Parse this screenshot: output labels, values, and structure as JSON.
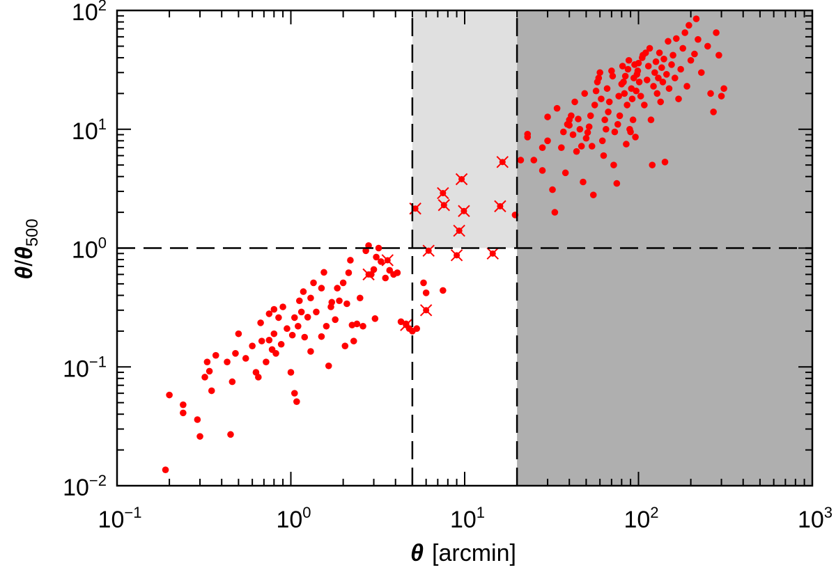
{
  "chart_data": {
    "type": "scatter",
    "title": "",
    "xscale": "log",
    "yscale": "log",
    "xlim": [
      0.1,
      1000
    ],
    "ylim": [
      0.01,
      100
    ],
    "xlabel": {
      "symbol": "θ",
      "text": "[arcmin]"
    },
    "ylabel": {
      "symbol": "θ",
      "slash": "/",
      "sub_symbol": "θ",
      "sub": "500"
    },
    "xticks": [
      {
        "value": 0.1,
        "base": "10",
        "exp": "−1"
      },
      {
        "value": 1,
        "base": "10",
        "exp": "0"
      },
      {
        "value": 10,
        "base": "10",
        "exp": "1"
      },
      {
        "value": 100,
        "base": "10",
        "exp": "2"
      },
      {
        "value": 1000,
        "base": "10",
        "exp": "3"
      }
    ],
    "yticks": [
      {
        "value": 0.01,
        "base": "10",
        "exp": "−2"
      },
      {
        "value": 0.1,
        "base": "10",
        "exp": "−1"
      },
      {
        "value": 1,
        "base": "10",
        "exp": "0"
      },
      {
        "value": 10,
        "base": "10",
        "exp": "1"
      },
      {
        "value": 100,
        "base": "10",
        "exp": "2"
      }
    ],
    "regions": [
      {
        "name": "light",
        "x_range": [
          5,
          20
        ],
        "y_range": [
          1,
          100
        ],
        "color": "#e0e0e0"
      },
      {
        "name": "dark",
        "x_range": [
          20,
          1000
        ],
        "y_range": [
          0.01,
          100
        ],
        "color": "#afafaf"
      }
    ],
    "reference_lines": [
      {
        "orientation": "vertical",
        "value": 5,
        "y_range": [
          0.01,
          100
        ]
      },
      {
        "orientation": "vertical",
        "value": 20,
        "y_range": [
          0.01,
          100
        ]
      },
      {
        "orientation": "horizontal",
        "value": 1,
        "x_range": [
          0.1,
          1000
        ]
      }
    ],
    "point_color": "#ff0000",
    "series": [
      {
        "name": "dots",
        "marker": "circle",
        "points": [
          [
            0.19,
            0.0136
          ],
          [
            0.2,
            0.058
          ],
          [
            0.24,
            0.048
          ],
          [
            0.24,
            0.041
          ],
          [
            0.29,
            0.036
          ],
          [
            0.3,
            0.026
          ],
          [
            0.32,
            0.082
          ],
          [
            0.33,
            0.11
          ],
          [
            0.34,
            0.092
          ],
          [
            0.35,
            0.063
          ],
          [
            0.37,
            0.125
          ],
          [
            0.43,
            0.11
          ],
          [
            0.45,
            0.027
          ],
          [
            0.46,
            0.075
          ],
          [
            0.48,
            0.13
          ],
          [
            0.5,
            0.19
          ],
          [
            0.55,
            0.118
          ],
          [
            0.6,
            0.15
          ],
          [
            0.63,
            0.09
          ],
          [
            0.65,
            0.082
          ],
          [
            0.67,
            0.235
          ],
          [
            0.68,
            0.165
          ],
          [
            0.72,
            0.11
          ],
          [
            0.75,
            0.168
          ],
          [
            0.75,
            0.28
          ],
          [
            0.78,
            0.14
          ],
          [
            0.8,
            0.305
          ],
          [
            0.8,
            0.19
          ],
          [
            0.82,
            0.13
          ],
          [
            0.85,
            0.26
          ],
          [
            0.88,
            0.155
          ],
          [
            0.9,
            0.32
          ],
          [
            0.95,
            0.21
          ],
          [
            1.0,
            0.09
          ],
          [
            1.02,
            0.185
          ],
          [
            1.05,
            0.26
          ],
          [
            1.05,
            0.06
          ],
          [
            1.08,
            0.051
          ],
          [
            1.1,
            0.22
          ],
          [
            1.12,
            0.36
          ],
          [
            1.15,
            0.29
          ],
          [
            1.18,
            0.43
          ],
          [
            1.2,
            0.178
          ],
          [
            1.25,
            0.262
          ],
          [
            1.3,
            0.38
          ],
          [
            1.3,
            0.135
          ],
          [
            1.35,
            0.51
          ],
          [
            1.4,
            0.29
          ],
          [
            1.5,
            0.46
          ],
          [
            1.5,
            0.18
          ],
          [
            1.55,
            0.625
          ],
          [
            1.6,
            0.22
          ],
          [
            1.65,
            0.102
          ],
          [
            1.7,
            0.32
          ],
          [
            1.72,
            0.35
          ],
          [
            1.8,
            0.25
          ],
          [
            1.85,
            0.46
          ],
          [
            1.9,
            0.36
          ],
          [
            2.0,
            0.51
          ],
          [
            2.05,
            0.15
          ],
          [
            2.1,
            0.34
          ],
          [
            2.15,
            0.62
          ],
          [
            2.2,
            0.79
          ],
          [
            2.25,
            0.225
          ],
          [
            2.3,
            0.165
          ],
          [
            2.4,
            0.23
          ],
          [
            2.5,
            0.38
          ],
          [
            2.6,
            0.22
          ],
          [
            2.7,
            0.95
          ],
          [
            2.8,
            1.05
          ],
          [
            2.9,
            0.6
          ],
          [
            3.0,
            0.66
          ],
          [
            3.05,
            0.255
          ],
          [
            3.1,
            0.84
          ],
          [
            3.2,
            1.0
          ],
          [
            3.3,
            0.77
          ],
          [
            3.5,
            0.56
          ],
          [
            3.7,
            0.65
          ],
          [
            3.9,
            0.6
          ],
          [
            4.1,
            0.62
          ],
          [
            4.3,
            0.24
          ],
          [
            4.6,
            0.23
          ],
          [
            4.8,
            0.21
          ],
          [
            5.0,
            0.2
          ],
          [
            5.3,
            0.21
          ],
          [
            5.8,
            0.51
          ],
          [
            6.0,
            0.42
          ],
          [
            7.5,
            0.44
          ],
          [
            19.5,
            1.9
          ],
          [
            21,
            5.5
          ],
          [
            23,
            8.6
          ],
          [
            23,
            9.1
          ],
          [
            25,
            5.5
          ],
          [
            28,
            7
          ],
          [
            28,
            4.5
          ],
          [
            30,
            12.7
          ],
          [
            30,
            8
          ],
          [
            32,
            3.1
          ],
          [
            33,
            2
          ],
          [
            34,
            15
          ],
          [
            36,
            7
          ],
          [
            37,
            9.5
          ],
          [
            38,
            4.3
          ],
          [
            39,
            11
          ],
          [
            40,
            10.8
          ],
          [
            40,
            12
          ],
          [
            41,
            13
          ],
          [
            42,
            9
          ],
          [
            43,
            17
          ],
          [
            44,
            6.5
          ],
          [
            45,
            12.2
          ],
          [
            46,
            10
          ],
          [
            47,
            7.2
          ],
          [
            48,
            3.6
          ],
          [
            49,
            20
          ],
          [
            50,
            8.4
          ],
          [
            51,
            9.4
          ],
          [
            52,
            10.5
          ],
          [
            53,
            13
          ],
          [
            54,
            7.2
          ],
          [
            55,
            2.8
          ],
          [
            56,
            16
          ],
          [
            57,
            21
          ],
          [
            58,
            25
          ],
          [
            59,
            27
          ],
          [
            60,
            30
          ],
          [
            61,
            18
          ],
          [
            62,
            8
          ],
          [
            63,
            6
          ],
          [
            64,
            12
          ],
          [
            65,
            10
          ],
          [
            66,
            22
          ],
          [
            67,
            14
          ],
          [
            68,
            17
          ],
          [
            70,
            31
          ],
          [
            71,
            28
          ],
          [
            72,
            5
          ],
          [
            73,
            9.5
          ],
          [
            75,
            3.5
          ],
          [
            76,
            11
          ],
          [
            77,
            19
          ],
          [
            78,
            13
          ],
          [
            80,
            24
          ],
          [
            81,
            34
          ],
          [
            82,
            25
          ],
          [
            83,
            20
          ],
          [
            84,
            28
          ],
          [
            85,
            7.5
          ],
          [
            86,
            16
          ],
          [
            87,
            32
          ],
          [
            88,
            38
          ],
          [
            89,
            10
          ],
          [
            90,
            9.5
          ],
          [
            91,
            22
          ],
          [
            92,
            18
          ],
          [
            93,
            12
          ],
          [
            94,
            27
          ],
          [
            95,
            35
          ],
          [
            96,
            8.6
          ],
          [
            97,
            21
          ],
          [
            98,
            29
          ],
          [
            99,
            31
          ],
          [
            100,
            36
          ],
          [
            101,
            25
          ],
          [
            103,
            19
          ],
          [
            105,
            40
          ],
          [
            106,
            42
          ],
          [
            108,
            16
          ],
          [
            110,
            44
          ],
          [
            112,
            26
          ],
          [
            114,
            34
          ],
          [
            116,
            48
          ],
          [
            118,
            12
          ],
          [
            120,
            5
          ],
          [
            122,
            23
          ],
          [
            124,
            30
          ],
          [
            126,
            37
          ],
          [
            128,
            20
          ],
          [
            130,
            27
          ],
          [
            132,
            44
          ],
          [
            134,
            17
          ],
          [
            136,
            33
          ],
          [
            138,
            25
          ],
          [
            140,
            39
          ],
          [
            142,
            5.3
          ],
          [
            145,
            29
          ],
          [
            148,
            55
          ],
          [
            150,
            22
          ],
          [
            155,
            35
          ],
          [
            158,
            42
          ],
          [
            162,
            27
          ],
          [
            165,
            58
          ],
          [
            170,
            18
          ],
          [
            175,
            32
          ],
          [
            180,
            48
          ],
          [
            185,
            65
          ],
          [
            190,
            23
          ],
          [
            195,
            75
          ],
          [
            200,
            38
          ],
          [
            210,
            43
          ],
          [
            215,
            85
          ],
          [
            220,
            57
          ],
          [
            230,
            30
          ],
          [
            250,
            50
          ],
          [
            260,
            20
          ],
          [
            270,
            14
          ],
          [
            280,
            65
          ],
          [
            290,
            42
          ],
          [
            300,
            19
          ],
          [
            310,
            22
          ]
        ]
      },
      {
        "name": "crossed",
        "marker": "circle-x",
        "points": [
          [
            2.8,
            0.6
          ],
          [
            3.6,
            0.79
          ],
          [
            4.6,
            0.225
          ],
          [
            5.2,
            2.15
          ],
          [
            6.0,
            0.3
          ],
          [
            6.2,
            0.95
          ],
          [
            7.5,
            2.9
          ],
          [
            7.6,
            2.3
          ],
          [
            9.0,
            0.87
          ],
          [
            9.3,
            1.4
          ],
          [
            9.6,
            3.8
          ],
          [
            9.9,
            2.05
          ],
          [
            14.5,
            0.9
          ],
          [
            16.0,
            2.25
          ],
          [
            16.5,
            5.3
          ]
        ]
      }
    ]
  }
}
